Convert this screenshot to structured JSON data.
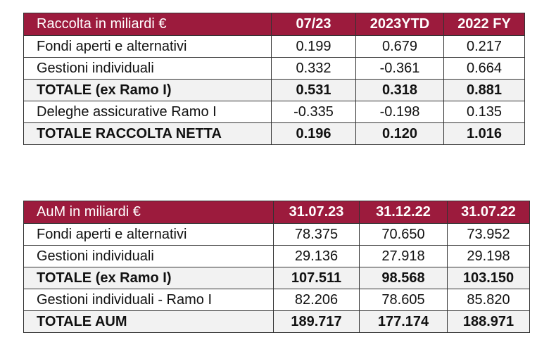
{
  "tables": [
    {
      "header": [
        "Raccolta in miliardi €",
        "07/23",
        "2023YTD",
        "2022 FY"
      ],
      "rows": [
        {
          "cells": [
            "Fondi aperti e alternativi",
            "0.199",
            "0.679",
            "0.217"
          ],
          "bold": false
        },
        {
          "cells": [
            "Gestioni individuali",
            "0.332",
            "-0.361",
            "0.664"
          ],
          "bold": false
        },
        {
          "cells": [
            "TOTALE (ex Ramo I)",
            "0.531",
            "0.318",
            "0.881"
          ],
          "bold": true
        },
        {
          "cells": [
            "Deleghe assicurative Ramo I",
            "-0.335",
            "-0.198",
            "0.135"
          ],
          "bold": false
        },
        {
          "cells": [
            "TOTALE RACCOLTA NETTA",
            "0.196",
            "0.120",
            "1.016"
          ],
          "bold": true
        }
      ]
    },
    {
      "header": [
        "AuM in miliardi €",
        "31.07.23",
        "31.12.22",
        "31.07.22"
      ],
      "rows": [
        {
          "cells": [
            "Fondi aperti e alternativi",
            "78.375",
            "70.650",
            "73.952"
          ],
          "bold": false
        },
        {
          "cells": [
            "Gestioni individuali",
            "29.136",
            "27.918",
            "29.198"
          ],
          "bold": false
        },
        {
          "cells": [
            "TOTALE (ex Ramo I)",
            "107.511",
            "98.568",
            "103.150"
          ],
          "bold": true
        },
        {
          "cells": [
            "Gestioni individuali - Ramo I",
            "82.206",
            "78.605",
            "85.820"
          ],
          "bold": false
        },
        {
          "cells": [
            "TOTALE AUM",
            "189.717",
            "177.174",
            "188.971"
          ],
          "bold": true
        }
      ]
    }
  ]
}
